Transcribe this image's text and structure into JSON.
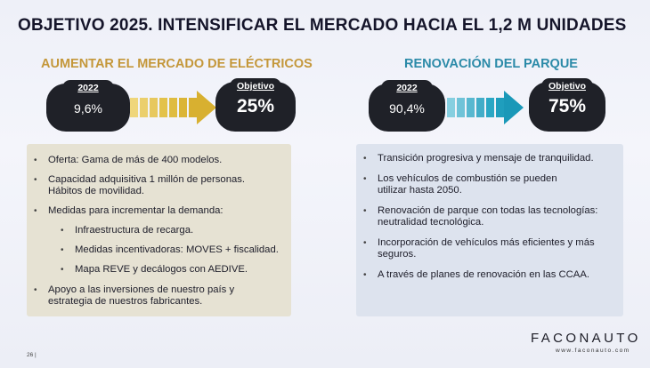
{
  "title": "OBJETIVO 2025. INTENSIFICAR EL MERCADO HACIA EL 1,2 M UNIDADES",
  "left": {
    "heading": "AUMENTAR EL MERCADO DE ELÉCTRICOS",
    "from_year": "2022",
    "from_value": "9,6%",
    "to_label": "Objetivo",
    "to_value": "25%",
    "arrow_color": "#e3c24a",
    "bullets": [
      "Oferta: Gama de más de 400 modelos.",
      "Capacidad adquisitiva 1 millón de personas. Hábitos de movilidad.",
      "Medidas para incrementar la demanda:",
      "Infraestructura de recarga.",
      "Medidas incentivadoras: MOVES + fiscalidad.",
      "Mapa REVE y decálogos con AEDIVE.",
      "Apoyo a las inversiones de nuestro país y estrategia de nuestros fabricantes."
    ]
  },
  "right": {
    "heading": "RENOVACIÓN DEL PARQUE",
    "from_year": "2022",
    "from_value": "90,4%",
    "to_label": "Objetivo",
    "to_value": "75%",
    "arrow_color": "#2aa7c4",
    "bullets": [
      "Transición progresiva y mensaje de tranquilidad.",
      "Los vehículos de combustión se pueden utilizar hasta 2050.",
      "Renovación de parque con todas las tecnologías: neutralidad tecnológica.",
      "Incorporación de vehículos más eficientes y más seguros.",
      "A través de planes de renovación en las CCAA."
    ]
  },
  "footer": {
    "brand": "FACONAUTO",
    "url": "www.faconauto.com",
    "page": "26 |"
  }
}
